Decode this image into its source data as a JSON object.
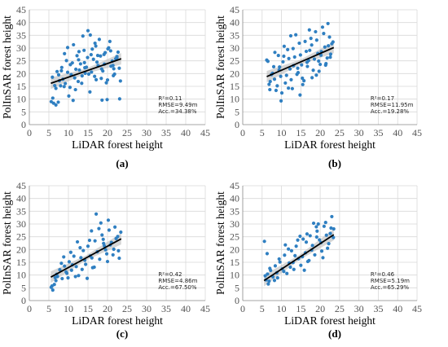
{
  "chart_data": [
    {
      "type": "scatter",
      "panel_label": "(a)",
      "xlabel": "LiDAR forest height",
      "ylabel": "PolInSAR forest height",
      "xlim": [
        0,
        45
      ],
      "ylim": [
        0,
        45
      ],
      "xticks": [
        "0",
        "5",
        "10",
        "15",
        "20",
        "25",
        "30",
        "35",
        "40",
        "45"
      ],
      "yticks": [
        "0",
        "5",
        "10",
        "15",
        "20",
        "25",
        "30",
        "35",
        "40",
        "45"
      ],
      "grid": true,
      "point_color": "#2f7fc1",
      "fit_line": {
        "x": [
          5.5,
          23.5
        ],
        "y": [
          16.2,
          25.8
        ]
      },
      "stats": [
        "R²=0.11",
        "RMSE=9.49m",
        "Acc.=34.38%"
      ],
      "points": {
        "x": [
          5.6,
          6.2,
          6.8,
          7.4,
          8.0,
          8.6,
          9.2,
          9.8,
          10.4,
          11.0,
          11.6,
          12.2,
          12.8,
          13.4,
          14.0,
          14.6,
          15.2,
          15.8,
          16.4,
          17.0,
          17.6,
          18.2,
          18.8,
          19.4,
          20.0,
          20.6,
          21.2,
          21.8,
          22.4,
          23.0,
          5.9,
          6.5,
          7.1,
          7.7,
          8.3,
          8.9,
          9.5,
          10.1,
          10.7,
          11.3,
          11.9,
          12.5,
          13.1,
          13.7,
          14.3,
          14.9,
          15.5,
          16.1,
          16.7,
          17.3,
          17.9,
          18.5,
          19.1,
          19.7,
          20.3,
          20.9,
          21.5,
          22.1,
          22.7,
          23.3,
          6.0,
          6.8,
          7.5,
          8.2,
          9.0,
          10.5,
          11.8,
          12.6,
          13.5,
          14.2,
          15.0,
          15.9,
          16.8,
          17.5,
          18.4,
          19.2,
          19.9,
          20.8,
          21.6,
          22.4,
          9.8,
          11.2,
          12.7,
          14.1,
          15.6,
          17.1,
          18.6,
          20.1,
          21.4,
          23.1
        ],
        "y": [
          9.0,
          8.4,
          7.7,
          8.8,
          15.2,
          17.8,
          16.1,
          20.5,
          14.6,
          24.2,
          18.3,
          27.0,
          21.4,
          16.2,
          29.1,
          22.5,
          19.8,
          27.4,
          25.6,
          30.8,
          23.1,
          26.9,
          21.0,
          28.2,
          17.5,
          32.6,
          24.9,
          19.8,
          26.7,
          22.1,
          18.6,
          15.3,
          20.8,
          17.2,
          22.4,
          14.9,
          25.1,
          11.2,
          19.6,
          31.3,
          21.7,
          16.9,
          23.8,
          34.7,
          20.1,
          26.3,
          12.8,
          29.6,
          18.9,
          24.5,
          33.4,
          21.8,
          27.5,
          16.4,
          30.1,
          22.9,
          19.2,
          25.8,
          28.4,
          17.1,
          10.4,
          14.2,
          19.5,
          21.1,
          27.8,
          23.5,
          13.7,
          25.4,
          19.1,
          22.3,
          36.8,
          20.6,
          31.9,
          27.1,
          18.1,
          23.7,
          9.8,
          28.9,
          21.9,
          26.2,
          30.2,
          9.5,
          28.6,
          24.3,
          35.1,
          17.6,
          9.6,
          29.7,
          23.2,
          10.1
        ]
      }
    },
    {
      "type": "scatter",
      "panel_label": "(b)",
      "xlabel": "LiDAR forest height",
      "ylabel": "PolInSAR forest height",
      "xlim": [
        0,
        45
      ],
      "ylim": [
        0,
        45
      ],
      "xticks": [
        "0",
        "5",
        "10",
        "15",
        "20",
        "25",
        "30",
        "35",
        "40",
        "45"
      ],
      "yticks": [
        "0",
        "5",
        "10",
        "15",
        "20",
        "25",
        "30",
        "35",
        "40",
        "45"
      ],
      "grid": true,
      "point_color": "#2f7fc1",
      "fit_line": {
        "x": [
          6.2,
          23.5
        ],
        "y": [
          18.8,
          30.2
        ]
      },
      "stats": [
        "R²=0.17",
        "RMSE=11.95m",
        "Acc.=19.28%"
      ],
      "points": {
        "x": [
          6.2,
          6.8,
          7.4,
          8.0,
          8.6,
          9.2,
          9.8,
          10.4,
          11.0,
          11.6,
          12.2,
          12.8,
          13.4,
          14.0,
          14.6,
          15.2,
          15.8,
          16.4,
          17.0,
          17.6,
          18.2,
          18.8,
          19.4,
          20.0,
          20.6,
          21.2,
          21.8,
          22.4,
          23.0,
          6.5,
          7.1,
          7.7,
          8.3,
          8.9,
          9.5,
          10.1,
          10.7,
          11.3,
          11.9,
          12.5,
          13.1,
          13.7,
          14.3,
          14.9,
          15.5,
          16.1,
          16.7,
          17.3,
          17.9,
          18.5,
          19.1,
          19.7,
          20.3,
          20.9,
          21.5,
          22.1,
          22.7,
          23.3,
          7.0,
          8.2,
          9.4,
          10.6,
          11.8,
          13.0,
          14.2,
          15.4,
          16.6,
          17.8,
          19.0,
          20.2,
          21.4,
          22.6,
          9.9,
          12.4,
          14.8,
          17.2,
          19.6,
          22.0
        ],
        "y": [
          25.3,
          15.8,
          19.6,
          22.7,
          13.4,
          27.1,
          18.9,
          24.6,
          16.3,
          29.4,
          21.8,
          14.1,
          26.5,
          19.7,
          31.9,
          23.4,
          17.2,
          28.7,
          25.1,
          33.8,
          21.3,
          36.4,
          27.9,
          23.6,
          38.2,
          30.4,
          26.1,
          34.3,
          31.7,
          24.8,
          16.9,
          20.1,
          28.3,
          15.2,
          22.6,
          12.4,
          30.7,
          19.3,
          25.9,
          17.6,
          23.1,
          35.2,
          20.4,
          27.3,
          15.7,
          32.6,
          22.8,
          29.1,
          18.4,
          25.7,
          33.1,
          20.9,
          28.6,
          35.7,
          23.9,
          30.9,
          27.6,
          32.4,
          13.7,
          17.8,
          21.4,
          26.8,
          14.3,
          29.8,
          22.1,
          18.2,
          24.4,
          31.2,
          19.4,
          27.2,
          23.3,
          26.4,
          9.3,
          34.8,
          11.6,
          37.1,
          24.9,
          39.6
        ]
      }
    },
    {
      "type": "scatter",
      "panel_label": "(c)",
      "xlabel": "LiDAR forest height",
      "ylabel": "PolInSAR forest height",
      "xlim": [
        0,
        45
      ],
      "ylim": [
        0,
        45
      ],
      "xticks": [
        "0",
        "5",
        "10",
        "15",
        "20",
        "25",
        "30",
        "35",
        "40",
        "45"
      ],
      "yticks": [
        "0",
        "5",
        "10",
        "15",
        "20",
        "25",
        "30",
        "35",
        "40",
        "45"
      ],
      "grid": true,
      "point_color": "#2f7fc1",
      "fit_line": {
        "x": [
          5.5,
          23.5
        ],
        "y": [
          9.2,
          24.2
        ]
      },
      "stats": [
        "R²=0.42",
        "RMSE=4.86m",
        "Acc.=67.50%"
      ],
      "points": {
        "x": [
          5.6,
          6.0,
          6.4,
          6.8,
          7.2,
          7.8,
          8.4,
          9.0,
          9.6,
          10.2,
          10.8,
          11.4,
          12.0,
          12.6,
          13.2,
          13.8,
          14.4,
          15.0,
          15.6,
          16.2,
          16.8,
          17.4,
          18.0,
          18.6,
          19.2,
          19.8,
          20.4,
          21.0,
          21.6,
          22.2,
          22.8,
          23.4,
          5.8,
          7.0,
          8.2,
          9.4,
          10.6,
          11.8,
          13.0,
          14.2,
          15.4,
          16.6,
          17.8,
          19.0,
          20.2,
          21.4,
          22.6,
          6.6,
          8.8,
          11.0,
          13.5,
          15.9,
          18.3,
          20.7,
          23.0,
          12.3,
          14.8,
          17.1,
          19.5,
          21.9,
          9.9,
          16.0,
          18.9,
          20.0
        ],
        "y": [
          5.2,
          4.1,
          6.3,
          7.8,
          9.4,
          12.1,
          8.6,
          13.5,
          10.7,
          15.2,
          11.9,
          17.4,
          13.3,
          9.8,
          16.8,
          19.6,
          14.2,
          21.3,
          17.5,
          12.9,
          23.4,
          19.1,
          16.2,
          25.7,
          21.4,
          18.3,
          27.6,
          22.8,
          20.1,
          24.3,
          19.5,
          26.8,
          5.7,
          10.3,
          14.6,
          11.2,
          18.9,
          9.4,
          20.7,
          15.8,
          23.6,
          13.1,
          28.2,
          22.4,
          31.5,
          17.9,
          25.1,
          9.0,
          17.1,
          14.0,
          12.2,
          27.3,
          30.4,
          21.8,
          16.6,
          23.0,
          8.7,
          33.9,
          19.9,
          28.8,
          8.9,
          16.7,
          24.0,
          15.3
        ]
      }
    },
    {
      "type": "scatter",
      "panel_label": "(d)",
      "xlabel": "LiDAR forest height",
      "ylabel": "PolInSAR forest height",
      "xlim": [
        0,
        45
      ],
      "ylim": [
        0,
        45
      ],
      "xticks": [
        "0",
        "5",
        "10",
        "15",
        "20",
        "25",
        "30",
        "35",
        "40",
        "45"
      ],
      "yticks": [
        "0",
        "5",
        "10",
        "15",
        "20",
        "25",
        "30",
        "35",
        "40",
        "45"
      ],
      "grid": true,
      "point_color": "#2f7fc1",
      "fit_line": {
        "x": [
          5.5,
          23.5
        ],
        "y": [
          7.8,
          25.8
        ]
      },
      "stats": [
        "R²=0.46",
        "RMSE=5.19m",
        "Acc.=65.29%"
      ],
      "points": {
        "x": [
          5.6,
          6.0,
          6.4,
          6.8,
          7.2,
          7.8,
          8.4,
          9.0,
          9.6,
          10.2,
          10.8,
          11.4,
          12.0,
          12.6,
          13.2,
          13.8,
          14.4,
          15.0,
          15.6,
          16.2,
          16.8,
          17.4,
          18.0,
          18.6,
          19.2,
          19.8,
          20.4,
          21.0,
          21.6,
          22.2,
          22.8,
          23.4,
          5.8,
          7.0,
          8.2,
          9.4,
          10.6,
          11.8,
          13.0,
          14.2,
          15.4,
          16.6,
          17.8,
          19.0,
          20.2,
          21.4,
          22.6,
          6.6,
          8.8,
          11.0,
          13.5,
          15.9,
          18.3,
          20.7,
          23.0,
          12.3,
          14.8,
          17.1,
          19.5,
          21.9,
          6.3,
          23.5,
          16.4,
          19.1
        ],
        "y": [
          23.2,
          8.1,
          10.4,
          7.6,
          11.8,
          9.3,
          13.6,
          8.9,
          15.1,
          12.4,
          17.8,
          10.6,
          14.7,
          19.5,
          12.2,
          21.3,
          16.4,
          13.8,
          24.1,
          18.7,
          15.3,
          25.4,
          21.6,
          17.9,
          27.2,
          23.8,
          19.4,
          29.1,
          25.6,
          22.3,
          28.4,
          24.7,
          9.7,
          12.6,
          7.9,
          16.3,
          11.4,
          20.2,
          14.9,
          23.7,
          17.2,
          26.1,
          19.8,
          28.9,
          22.7,
          30.6,
          26.3,
          6.5,
          10.9,
          21.8,
          17.6,
          11.9,
          30.3,
          16.8,
          32.9,
          13.1,
          25.2,
          15.7,
          30.0,
          20.5,
          18.4,
          28.1,
          22.9,
          24.9
        ]
      }
    }
  ]
}
